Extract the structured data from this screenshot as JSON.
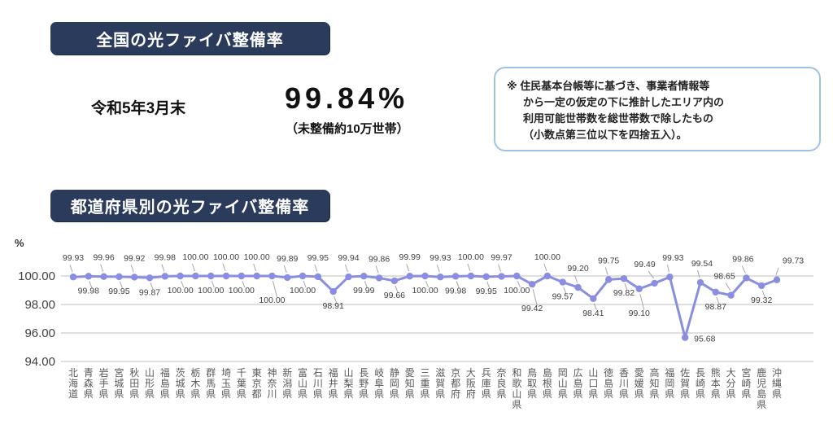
{
  "page": {
    "section1_title": "全国の光ファイバ整備率",
    "date_label": "令和5年3月末",
    "rate_value": "99.84%",
    "rate_note": "（未整備約10万世帯）",
    "note_lines": [
      "※ 住民基本台帳等に基づき、事業者情報等",
      "から一定の仮定の下に推計したエリア内の",
      "利用可能世帯数を総世帯数で除したもの",
      "（小数点第三位以下を四捨五入）。"
    ],
    "section2_title": "都道府県別の光ファイバ整備率"
  },
  "colors": {
    "header_bg": "#2b3b5c",
    "line": "#8a8ee0",
    "note_border": "#9dc3e6",
    "grid": "#bfbfbf",
    "leader": "#a6a6a6",
    "data_label_text": "#404040",
    "axis_text": "#595959"
  },
  "chart_data": {
    "type": "line",
    "title": "都道府県別の光ファイバ整備率",
    "ylabel": "%",
    "yticks": [
      100.0,
      98.0,
      96.0,
      94.0
    ],
    "ylim": [
      94.0,
      100.0
    ],
    "grid": true,
    "legend": "none",
    "categories": [
      "北海道",
      "青森県",
      "岩手県",
      "宮城県",
      "秋田県",
      "山形県",
      "福島県",
      "茨城県",
      "栃木県",
      "群馬県",
      "埼玉県",
      "千葉県",
      "東京都",
      "神奈川",
      "新潟県",
      "富山県",
      "石川県",
      "福井県",
      "山梨県",
      "長野県",
      "岐阜県",
      "静岡県",
      "愛知県",
      "三重県",
      "滋賀県",
      "京都府",
      "大阪府",
      "兵庫県",
      "奈良県",
      "和歌山県",
      "鳥取県",
      "島根県",
      "岡山県",
      "広島県",
      "山口県",
      "徳島県",
      "香川県",
      "愛媛県",
      "高知県",
      "福岡県",
      "佐賀県",
      "長崎県",
      "熊本県",
      "大分県",
      "宮崎県",
      "鹿児島県",
      "沖縄県"
    ],
    "values": [
      99.93,
      99.98,
      99.96,
      99.95,
      99.92,
      99.87,
      99.98,
      100.0,
      100.0,
      100.0,
      100.0,
      100.0,
      100.0,
      100.0,
      99.89,
      100.0,
      99.95,
      98.91,
      99.94,
      99.99,
      99.86,
      99.66,
      99.99,
      100.0,
      99.93,
      99.98,
      100.0,
      99.95,
      99.97,
      100.0,
      99.42,
      100.0,
      99.57,
      99.2,
      98.41,
      99.75,
      99.82,
      99.1,
      99.49,
      99.93,
      95.68,
      99.54,
      98.87,
      98.65,
      99.86,
      99.32,
      99.73
    ],
    "label_sides": [
      "above",
      "below",
      "above",
      "below",
      "above",
      "below",
      "above",
      "below",
      "above",
      "below",
      "above",
      "below",
      "above",
      "below2",
      "above",
      "below",
      "above",
      "below",
      "above",
      "below",
      "above",
      "below",
      "above",
      "below",
      "above",
      "below",
      "above",
      "below",
      "above",
      "below",
      "below2",
      "above",
      "below",
      "above",
      "below",
      "above",
      "below",
      "below2",
      "above",
      "above",
      "right",
      "above",
      "below",
      "above",
      "above",
      "below",
      "above"
    ],
    "label_dx": {
      "38": -12,
      "39": 4,
      "41": 2,
      "43": -8,
      "44": -4,
      "46": 20
    }
  }
}
